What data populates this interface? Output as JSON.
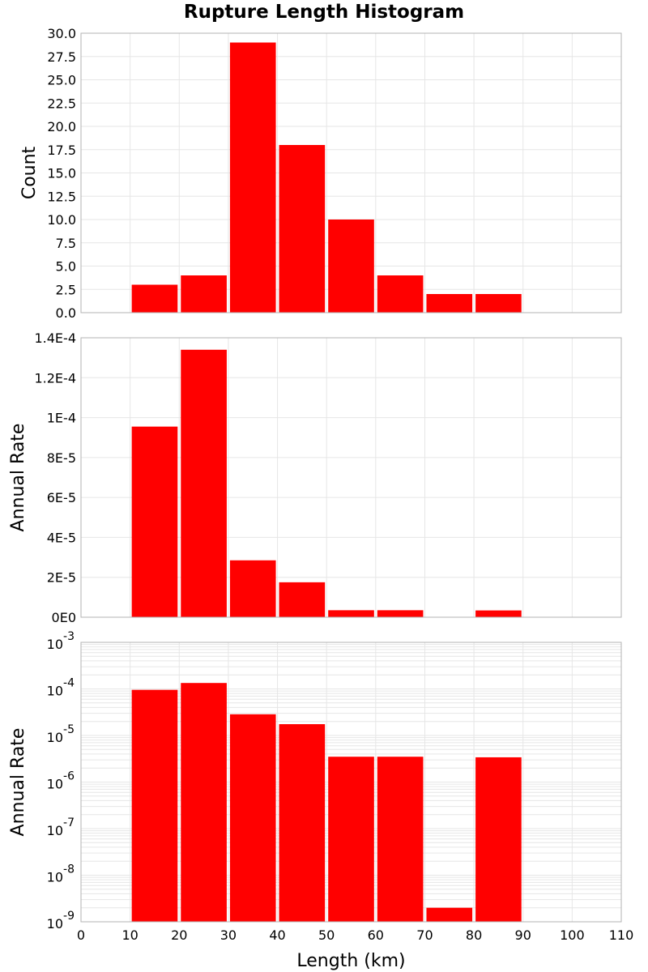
{
  "title": "Rupture Length Histogram",
  "chart_data": [
    {
      "type": "bar",
      "panel": "top",
      "ylabel": "Count",
      "ylim": [
        0,
        30
      ],
      "y_ticks": [
        "0.0",
        "2.5",
        "5.0",
        "7.5",
        "10.0",
        "12.5",
        "15.0",
        "17.5",
        "20.0",
        "22.5",
        "25.0",
        "27.5",
        "30.0"
      ],
      "y_tick_values": [
        0,
        2.5,
        5,
        7.5,
        10,
        12.5,
        15,
        17.5,
        20,
        22.5,
        25,
        27.5,
        30
      ],
      "bins": [
        [
          10,
          20
        ],
        [
          20,
          30
        ],
        [
          30,
          40
        ],
        [
          40,
          50
        ],
        [
          50,
          60
        ],
        [
          60,
          70
        ],
        [
          70,
          80
        ],
        [
          80,
          90
        ]
      ],
      "values": [
        3,
        4,
        29,
        18,
        10,
        4,
        2,
        2
      ]
    },
    {
      "type": "bar",
      "panel": "middle",
      "ylabel": "Annual Rate",
      "ylim": [
        0,
        0.00014
      ],
      "y_ticks": [
        "0E0",
        "2E-5",
        "4E-5",
        "6E-5",
        "8E-5",
        "1E-4",
        "1.2E-4",
        "1.4E-4"
      ],
      "y_tick_values": [
        0,
        2e-05,
        4e-05,
        6e-05,
        8e-05,
        0.0001,
        0.00012,
        0.00014
      ],
      "bins": [
        [
          10,
          20
        ],
        [
          20,
          30
        ],
        [
          30,
          40
        ],
        [
          40,
          50
        ],
        [
          50,
          60
        ],
        [
          60,
          70
        ],
        [
          70,
          80
        ],
        [
          80,
          90
        ]
      ],
      "values": [
        9.55e-05,
        0.000134,
        2.85e-05,
        1.75e-05,
        3.5e-06,
        3.5e-06,
        2e-09,
        3.4e-06
      ]
    },
    {
      "type": "bar",
      "panel": "bottom",
      "scale": "log",
      "ylabel": "Annual Rate",
      "ylim": [
        1e-09,
        0.001
      ],
      "y_ticks": [
        {
          "base": "10",
          "exp": "-9",
          "value": 1e-09
        },
        {
          "base": "10",
          "exp": "-8",
          "value": 1e-08
        },
        {
          "base": "10",
          "exp": "-7",
          "value": 1e-07
        },
        {
          "base": "10",
          "exp": "-6",
          "value": 1e-06
        },
        {
          "base": "10",
          "exp": "-5",
          "value": 1e-05
        },
        {
          "base": "10",
          "exp": "-4",
          "value": 0.0001
        },
        {
          "base": "10",
          "exp": "-3",
          "value": 0.001
        }
      ],
      "xlabel": "Length (km)",
      "xlim": [
        0,
        110
      ],
      "x_ticks": [
        "0",
        "10",
        "20",
        "30",
        "40",
        "50",
        "60",
        "70",
        "80",
        "90",
        "100",
        "110"
      ],
      "x_tick_values": [
        0,
        10,
        20,
        30,
        40,
        50,
        60,
        70,
        80,
        90,
        100,
        110
      ],
      "bins": [
        [
          10,
          20
        ],
        [
          20,
          30
        ],
        [
          30,
          40
        ],
        [
          40,
          50
        ],
        [
          50,
          60
        ],
        [
          60,
          70
        ],
        [
          70,
          80
        ],
        [
          80,
          90
        ]
      ],
      "values": [
        9.55e-05,
        0.000134,
        2.85e-05,
        1.75e-05,
        3.5e-06,
        3.5e-06,
        2e-09,
        3.4e-06
      ]
    }
  ],
  "colors": {
    "bar": "#ff0000",
    "grid": "#e6e6e6",
    "frame": "#b3b3b3",
    "bar_edge": "#ffffff"
  }
}
